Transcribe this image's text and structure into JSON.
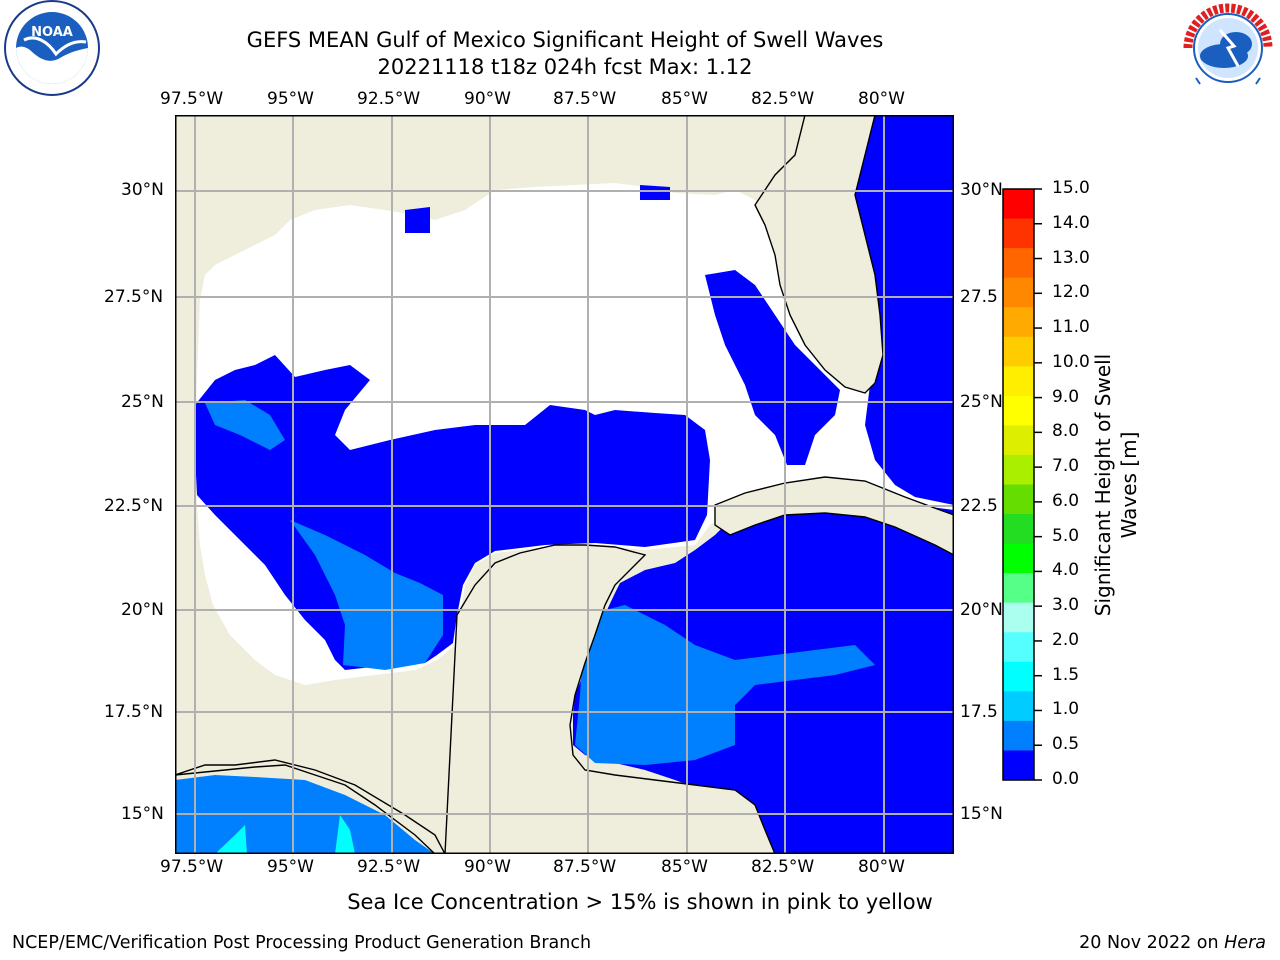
{
  "title": {
    "line1": "GEFS MEAN Gulf of Mexico Significant Height of Swell Waves",
    "line2": "20221118 t18z 024h fcst   Max: 1.12"
  },
  "map": {
    "lon_ticks": [
      "97.5°W",
      "95°W",
      "92.5°W",
      "90°W",
      "87.5°W",
      "85°W",
      "82.5°W",
      "80°W"
    ],
    "lat_ticks": [
      "30°N",
      "27.5°N",
      "25°N",
      "22.5°N",
      "20°N",
      "17.5°N",
      "15°N"
    ],
    "lat_ticks_right": [
      "30°N",
      "27.5",
      "25°N",
      "22.5",
      "20°N",
      "17.5",
      "15°N"
    ],
    "colors": {
      "land": "#efeedc",
      "ocean_0_0.5": "#0000ff",
      "ocean_0.5_1.0": "#0080ff",
      "ocean_1.0_1.5": "#00ffff",
      "grid": "#b0b0b0"
    }
  },
  "colorbar": {
    "title": [
      "Significant Height of Swell",
      "Waves [m]"
    ],
    "labels": [
      "15.0",
      "14.0",
      "13.0",
      "12.0",
      "11.0",
      "10.0",
      "9.0",
      "8.0",
      "7.0",
      "6.0",
      "5.0",
      "4.0",
      "3.0",
      "2.0",
      "1.5",
      "1.0",
      "0.5",
      "0.0"
    ],
    "colors": [
      "#ff0000",
      "#ff3300",
      "#ff6600",
      "#ff8800",
      "#ffaa00",
      "#ffcc00",
      "#ffee00",
      "#ffff00",
      "#ddee00",
      "#aaee00",
      "#66dd00",
      "#22dd22",
      "#00ff00",
      "#55ff88",
      "#aaffee",
      "#55ffff",
      "#00ffff",
      "#00ccff",
      "#0080ff",
      "#0000ff"
    ]
  },
  "subtitle": "Sea Ice Concentration > 15% is shown in pink to yellow",
  "footer": {
    "left": "NCEP/EMC/Verification Post Processing Product Generation Branch",
    "right_date": "20 Nov 2022 on ",
    "right_host": "Hera"
  },
  "logos": {
    "left": "noaa-logo",
    "right": "national-weather-service-logo",
    "left_ring_text": "NATIONAL OCEANIC AND ATMOSPHERIC ADMINISTRATION · U.S. DEPARTMENT OF COMMERCE",
    "right_ring_text": "NATIONAL WEATHER SERVICE"
  }
}
